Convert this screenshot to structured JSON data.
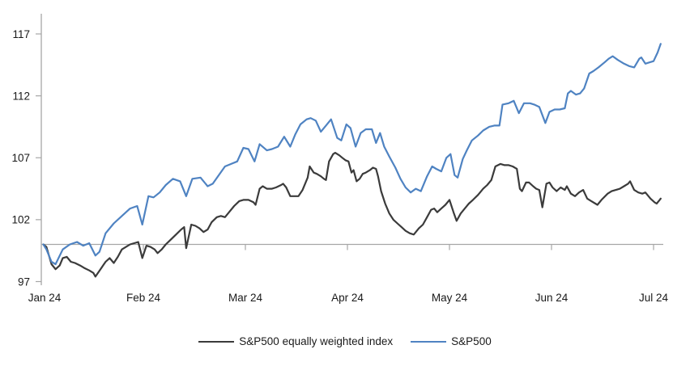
{
  "chart_data": {
    "type": "line",
    "title": "",
    "x_axis": {
      "unit": "month",
      "labels": [
        "Jan 24",
        "Feb 24",
        "Mar 24",
        "Apr 24",
        "May 24",
        "Jun 24",
        "Jul 24"
      ]
    },
    "y_axis": {
      "ticks": [
        117,
        112,
        107,
        102,
        97
      ],
      "min": 97,
      "max": 117,
      "axis_crosses_at": 100
    },
    "grid": "none (x-axis line drawn at value 100)",
    "colors": {
      "axis": "#a6a6a6",
      "tick_text": "#1a1a1a",
      "sp500": "#4f83c2",
      "sp500_equal_weight": "#3b3b3b"
    },
    "legend": {
      "position": "bottom-center",
      "items": [
        {
          "label": "S&P500 equally weighted index",
          "color": "#3b3b3b"
        },
        {
          "label": "S&P500",
          "color": "#4f83c2"
        }
      ]
    },
    "series": [
      {
        "name": "S&P500 equally weighted index",
        "color": "#3b3b3b",
        "points": [
          [
            0.02,
            100.0
          ],
          [
            0.05,
            99.8
          ],
          [
            0.1,
            98.4
          ],
          [
            0.14,
            98.0
          ],
          [
            0.18,
            98.3
          ],
          [
            0.21,
            98.9
          ],
          [
            0.25,
            99.0
          ],
          [
            0.29,
            98.6
          ],
          [
            0.33,
            98.5
          ],
          [
            0.38,
            98.3
          ],
          [
            0.42,
            98.1
          ],
          [
            0.47,
            97.9
          ],
          [
            0.51,
            97.7
          ],
          [
            0.53,
            97.4
          ],
          [
            0.58,
            98.0
          ],
          [
            0.63,
            98.6
          ],
          [
            0.67,
            98.9
          ],
          [
            0.71,
            98.5
          ],
          [
            0.75,
            99.0
          ],
          [
            0.79,
            99.6
          ],
          [
            0.83,
            99.8
          ],
          [
            0.87,
            100.0
          ],
          [
            0.91,
            100.1
          ],
          [
            0.95,
            100.2
          ],
          [
            0.99,
            98.9
          ],
          [
            1.03,
            99.9
          ],
          [
            1.07,
            99.8
          ],
          [
            1.11,
            99.6
          ],
          [
            1.14,
            99.3
          ],
          [
            1.18,
            99.6
          ],
          [
            1.22,
            100.0
          ],
          [
            1.27,
            100.4
          ],
          [
            1.32,
            100.8
          ],
          [
            1.37,
            101.2
          ],
          [
            1.4,
            101.4
          ],
          [
            1.42,
            99.7
          ],
          [
            1.47,
            101.6
          ],
          [
            1.51,
            101.5
          ],
          [
            1.55,
            101.3
          ],
          [
            1.59,
            101.0
          ],
          [
            1.63,
            101.2
          ],
          [
            1.67,
            101.8
          ],
          [
            1.72,
            102.2
          ],
          [
            1.76,
            102.3
          ],
          [
            1.8,
            102.2
          ],
          [
            1.84,
            102.6
          ],
          [
            1.89,
            103.1
          ],
          [
            1.94,
            103.5
          ],
          [
            1.98,
            103.6
          ],
          [
            2.03,
            103.6
          ],
          [
            2.08,
            103.4
          ],
          [
            2.1,
            103.2
          ],
          [
            2.14,
            104.5
          ],
          [
            2.17,
            104.7
          ],
          [
            2.21,
            104.5
          ],
          [
            2.26,
            104.5
          ],
          [
            2.3,
            104.6
          ],
          [
            2.35,
            104.8
          ],
          [
            2.37,
            104.9
          ],
          [
            2.4,
            104.6
          ],
          [
            2.44,
            103.9
          ],
          [
            2.48,
            103.9
          ],
          [
            2.52,
            103.9
          ],
          [
            2.56,
            104.4
          ],
          [
            2.61,
            105.4
          ],
          [
            2.63,
            106.3
          ],
          [
            2.67,
            105.8
          ],
          [
            2.7,
            105.7
          ],
          [
            2.74,
            105.5
          ],
          [
            2.77,
            105.3
          ],
          [
            2.79,
            105.2
          ],
          [
            2.82,
            106.7
          ],
          [
            2.86,
            107.3
          ],
          [
            2.88,
            107.4
          ],
          [
            2.92,
            107.2
          ],
          [
            2.95,
            107.0
          ],
          [
            2.98,
            106.8
          ],
          [
            3.01,
            106.7
          ],
          [
            3.04,
            105.8
          ],
          [
            3.06,
            106.0
          ],
          [
            3.09,
            105.1
          ],
          [
            3.12,
            105.3
          ],
          [
            3.15,
            105.7
          ],
          [
            3.18,
            105.8
          ],
          [
            3.22,
            106.0
          ],
          [
            3.25,
            106.2
          ],
          [
            3.28,
            106.1
          ],
          [
            3.3,
            105.5
          ],
          [
            3.33,
            104.3
          ],
          [
            3.37,
            103.3
          ],
          [
            3.41,
            102.5
          ],
          [
            3.45,
            102.0
          ],
          [
            3.49,
            101.7
          ],
          [
            3.53,
            101.4
          ],
          [
            3.57,
            101.1
          ],
          [
            3.61,
            100.9
          ],
          [
            3.65,
            100.8
          ],
          [
            3.7,
            101.3
          ],
          [
            3.74,
            101.6
          ],
          [
            3.78,
            102.2
          ],
          [
            3.82,
            102.8
          ],
          [
            3.85,
            102.9
          ],
          [
            3.88,
            102.6
          ],
          [
            3.92,
            102.9
          ],
          [
            3.96,
            103.2
          ],
          [
            4.0,
            103.6
          ],
          [
            4.04,
            102.6
          ],
          [
            4.07,
            101.9
          ],
          [
            4.11,
            102.5
          ],
          [
            4.15,
            102.9
          ],
          [
            4.19,
            103.3
          ],
          [
            4.23,
            103.6
          ],
          [
            4.28,
            104.0
          ],
          [
            4.33,
            104.5
          ],
          [
            4.37,
            104.8
          ],
          [
            4.41,
            105.2
          ],
          [
            4.45,
            106.3
          ],
          [
            4.5,
            106.5
          ],
          [
            4.54,
            106.4
          ],
          [
            4.58,
            106.4
          ],
          [
            4.62,
            106.3
          ],
          [
            4.66,
            106.1
          ],
          [
            4.69,
            104.5
          ],
          [
            4.71,
            104.3
          ],
          [
            4.75,
            105.0
          ],
          [
            4.78,
            105.0
          ],
          [
            4.82,
            104.7
          ],
          [
            4.85,
            104.5
          ],
          [
            4.88,
            104.4
          ],
          [
            4.91,
            103.0
          ],
          [
            4.95,
            104.9
          ],
          [
            4.98,
            105.0
          ],
          [
            5.01,
            104.6
          ],
          [
            5.05,
            104.3
          ],
          [
            5.09,
            104.6
          ],
          [
            5.13,
            104.4
          ],
          [
            5.15,
            104.7
          ],
          [
            5.19,
            104.1
          ],
          [
            5.23,
            103.9
          ],
          [
            5.27,
            104.2
          ],
          [
            5.31,
            104.4
          ],
          [
            5.35,
            103.7
          ],
          [
            5.39,
            103.5
          ],
          [
            5.43,
            103.3
          ],
          [
            5.45,
            103.2
          ],
          [
            5.49,
            103.6
          ],
          [
            5.55,
            104.1
          ],
          [
            5.59,
            104.3
          ],
          [
            5.63,
            104.4
          ],
          [
            5.67,
            104.5
          ],
          [
            5.71,
            104.7
          ],
          [
            5.75,
            104.9
          ],
          [
            5.77,
            105.1
          ],
          [
            5.81,
            104.4
          ],
          [
            5.85,
            104.2
          ],
          [
            5.89,
            104.1
          ],
          [
            5.92,
            104.2
          ],
          [
            5.97,
            103.7
          ],
          [
            6.01,
            103.4
          ],
          [
            6.03,
            103.3
          ],
          [
            6.06,
            103.6
          ],
          [
            6.07,
            103.7
          ]
        ]
      },
      {
        "name": "S&P500",
        "color": "#4f83c2",
        "points": [
          [
            0.02,
            100.0
          ],
          [
            0.05,
            99.6
          ],
          [
            0.1,
            98.6
          ],
          [
            0.14,
            98.4
          ],
          [
            0.21,
            99.6
          ],
          [
            0.28,
            100.0
          ],
          [
            0.35,
            100.2
          ],
          [
            0.41,
            99.9
          ],
          [
            0.47,
            100.1
          ],
          [
            0.53,
            99.1
          ],
          [
            0.57,
            99.4
          ],
          [
            0.63,
            100.9
          ],
          [
            0.71,
            101.7
          ],
          [
            0.79,
            102.3
          ],
          [
            0.87,
            102.9
          ],
          [
            0.94,
            103.1
          ],
          [
            0.99,
            101.6
          ],
          [
            1.05,
            103.9
          ],
          [
            1.1,
            103.8
          ],
          [
            1.16,
            104.2
          ],
          [
            1.22,
            104.8
          ],
          [
            1.29,
            105.3
          ],
          [
            1.36,
            105.1
          ],
          [
            1.42,
            103.9
          ],
          [
            1.48,
            105.3
          ],
          [
            1.56,
            105.4
          ],
          [
            1.63,
            104.7
          ],
          [
            1.68,
            104.9
          ],
          [
            1.74,
            105.6
          ],
          [
            1.8,
            106.3
          ],
          [
            1.86,
            106.5
          ],
          [
            1.92,
            106.7
          ],
          [
            1.98,
            107.8
          ],
          [
            2.03,
            107.7
          ],
          [
            2.09,
            106.7
          ],
          [
            2.14,
            108.1
          ],
          [
            2.21,
            107.6
          ],
          [
            2.26,
            107.7
          ],
          [
            2.32,
            107.9
          ],
          [
            2.38,
            108.7
          ],
          [
            2.44,
            107.9
          ],
          [
            2.49,
            108.9
          ],
          [
            2.54,
            109.7
          ],
          [
            2.6,
            110.1
          ],
          [
            2.64,
            110.2
          ],
          [
            2.69,
            110.0
          ],
          [
            2.74,
            109.1
          ],
          [
            2.79,
            109.6
          ],
          [
            2.84,
            110.1
          ],
          [
            2.9,
            108.6
          ],
          [
            2.94,
            108.4
          ],
          [
            2.99,
            109.7
          ],
          [
            3.03,
            109.4
          ],
          [
            3.08,
            107.9
          ],
          [
            3.13,
            109.0
          ],
          [
            3.18,
            109.3
          ],
          [
            3.24,
            109.3
          ],
          [
            3.28,
            108.2
          ],
          [
            3.32,
            109.0
          ],
          [
            3.36,
            107.9
          ],
          [
            3.41,
            107.1
          ],
          [
            3.47,
            106.2
          ],
          [
            3.52,
            105.3
          ],
          [
            3.57,
            104.6
          ],
          [
            3.62,
            104.2
          ],
          [
            3.67,
            104.5
          ],
          [
            3.72,
            104.3
          ],
          [
            3.78,
            105.5
          ],
          [
            3.83,
            106.3
          ],
          [
            3.87,
            106.1
          ],
          [
            3.92,
            105.9
          ],
          [
            3.97,
            107.0
          ],
          [
            4.01,
            107.3
          ],
          [
            4.05,
            105.6
          ],
          [
            4.08,
            105.4
          ],
          [
            4.13,
            106.9
          ],
          [
            4.17,
            107.6
          ],
          [
            4.22,
            108.4
          ],
          [
            4.28,
            108.8
          ],
          [
            4.33,
            109.2
          ],
          [
            4.39,
            109.5
          ],
          [
            4.44,
            109.6
          ],
          [
            4.49,
            109.6
          ],
          [
            4.52,
            111.3
          ],
          [
            4.58,
            111.4
          ],
          [
            4.63,
            111.6
          ],
          [
            4.68,
            110.6
          ],
          [
            4.73,
            111.4
          ],
          [
            4.79,
            111.4
          ],
          [
            4.83,
            111.3
          ],
          [
            4.88,
            111.1
          ],
          [
            4.94,
            109.8
          ],
          [
            4.98,
            110.7
          ],
          [
            5.03,
            110.9
          ],
          [
            5.08,
            110.9
          ],
          [
            5.13,
            111.0
          ],
          [
            5.16,
            112.2
          ],
          [
            5.19,
            112.4
          ],
          [
            5.24,
            112.1
          ],
          [
            5.28,
            112.2
          ],
          [
            5.32,
            112.6
          ],
          [
            5.37,
            113.8
          ],
          [
            5.41,
            114.0
          ],
          [
            5.46,
            114.3
          ],
          [
            5.52,
            114.7
          ],
          [
            5.56,
            115.0
          ],
          [
            5.6,
            115.2
          ],
          [
            5.65,
            114.9
          ],
          [
            5.71,
            114.6
          ],
          [
            5.76,
            114.4
          ],
          [
            5.81,
            114.3
          ],
          [
            5.86,
            115.0
          ],
          [
            5.88,
            115.1
          ],
          [
            5.92,
            114.6
          ],
          [
            5.96,
            114.7
          ],
          [
            6.0,
            114.8
          ],
          [
            6.04,
            115.5
          ],
          [
            6.07,
            116.2
          ]
        ]
      }
    ]
  }
}
